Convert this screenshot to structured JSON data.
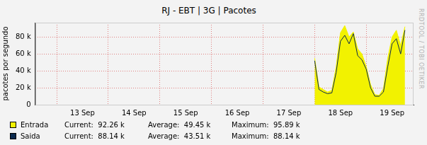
{
  "chart_data": {
    "type": "area",
    "title": "RJ - EBT | 3G | Pacotes",
    "y_label": "pacotes por segundo",
    "side_text": "RRDTOOL / TOBI OETIKER",
    "categories": [
      null,
      null,
      null,
      null,
      null,
      null,
      null,
      null,
      null,
      null,
      null,
      "13 Sep",
      null,
      null,
      null,
      null,
      null,
      null,
      null,
      null,
      null,
      null,
      null,
      "14 Sep",
      null,
      null,
      null,
      null,
      null,
      null,
      null,
      null,
      null,
      null,
      null,
      "15 Sep",
      null,
      null,
      null,
      null,
      null,
      null,
      null,
      null,
      null,
      null,
      null,
      "16 Sep",
      null,
      null,
      null,
      null,
      null,
      null,
      null,
      null,
      null,
      null,
      null,
      "17 Sep",
      null,
      null,
      null,
      null,
      null,
      null,
      null,
      null,
      null,
      null,
      null,
      "18 Sep",
      null,
      null,
      null,
      null,
      null,
      null,
      null,
      null,
      null,
      null,
      null,
      "19 Sep",
      null,
      null,
      null,
      null,
      null
    ],
    "series": [
      {
        "name": "Entrada",
        "color": "#f2f200",
        "type": "area",
        "stats": [
          {
            "name": "Current:",
            "label": "92.26 k"
          },
          {
            "name": "Average:",
            "label": "49.45 k"
          },
          {
            "name": "Maximum:",
            "label": "95.89 k"
          }
        ],
        "values": [
          null,
          null,
          null,
          null,
          null,
          null,
          null,
          null,
          null,
          null,
          null,
          null,
          null,
          null,
          null,
          null,
          null,
          null,
          null,
          null,
          null,
          null,
          null,
          null,
          null,
          null,
          null,
          null,
          null,
          null,
          null,
          null,
          null,
          null,
          null,
          null,
          null,
          null,
          null,
          null,
          null,
          null,
          null,
          null,
          null,
          null,
          null,
          null,
          null,
          null,
          null,
          null,
          null,
          null,
          null,
          null,
          null,
          null,
          null,
          null,
          null,
          null,
          null,
          null,
          null,
          55000,
          21000,
          18000,
          15000,
          17000,
          45000,
          85000,
          93500,
          80000,
          86000,
          66000,
          60000,
          45000,
          24000,
          12000,
          11000,
          19000,
          55000,
          80000,
          88000,
          70000,
          92260,
          null,
          null
        ]
      },
      {
        "name": "Saida",
        "color": "#0c2a4e",
        "type": "line",
        "stats": [
          {
            "name": "Current:",
            "label": "88.14 k"
          },
          {
            "name": "Average:",
            "label": "43.51 k"
          },
          {
            "name": "Maximum:",
            "label": "88.14 k"
          }
        ],
        "values": [
          null,
          null,
          null,
          null,
          null,
          null,
          null,
          null,
          null,
          null,
          null,
          null,
          null,
          null,
          null,
          null,
          null,
          null,
          null,
          null,
          null,
          null,
          null,
          null,
          null,
          null,
          null,
          null,
          null,
          null,
          null,
          null,
          null,
          null,
          null,
          null,
          null,
          null,
          null,
          null,
          null,
          null,
          null,
          null,
          null,
          null,
          null,
          null,
          null,
          null,
          null,
          null,
          null,
          null,
          null,
          null,
          null,
          null,
          null,
          null,
          null,
          null,
          null,
          null,
          null,
          52000,
          18000,
          15000,
          13000,
          14000,
          38000,
          75000,
          82000,
          72000,
          84000,
          58000,
          53000,
          42000,
          20000,
          10000,
          10000,
          15000,
          45000,
          72000,
          78000,
          60000,
          88140,
          null,
          null
        ]
      }
    ],
    "ylim": [
      0,
      97000
    ],
    "yticks": [
      0,
      {
        "value": 20000,
        "label": "20 k"
      },
      {
        "value": 40000,
        "label": "40 k"
      },
      {
        "value": 60000,
        "label": "60 k"
      },
      {
        "value": 80000,
        "label": "80 k"
      }
    ],
    "grid": true
  }
}
